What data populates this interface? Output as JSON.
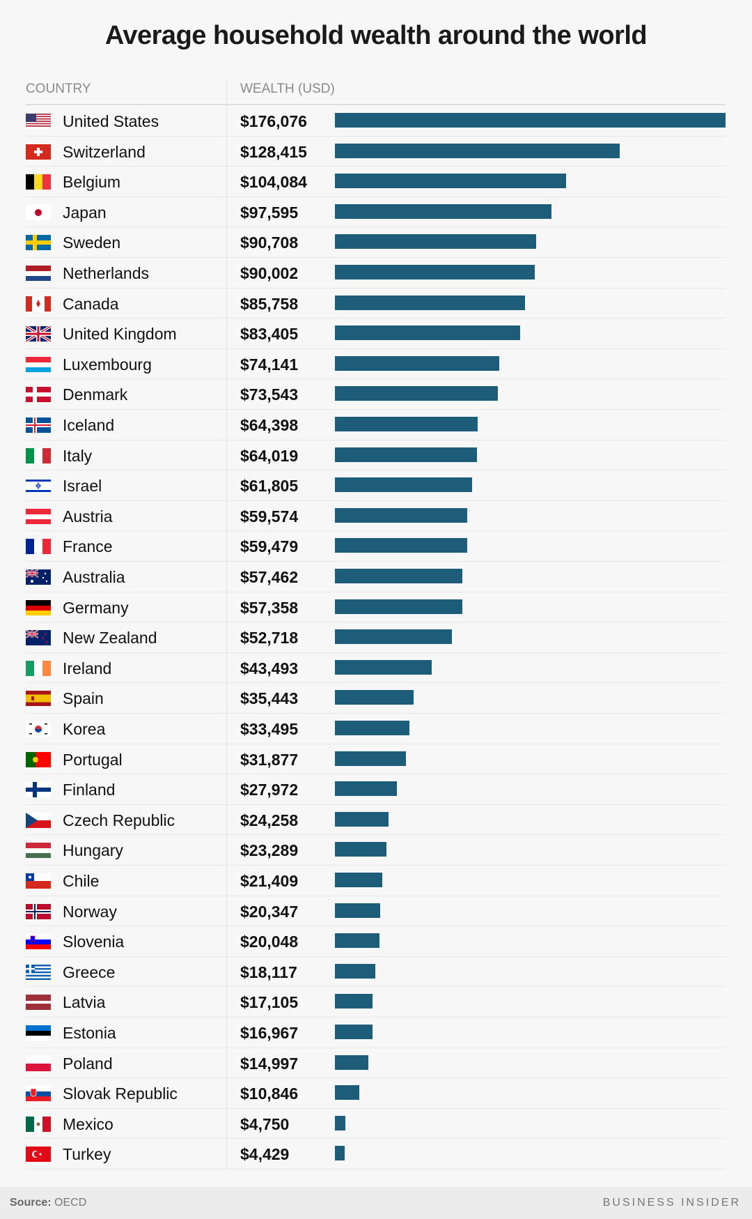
{
  "chart_data": {
    "type": "bar",
    "orientation": "horizontal",
    "title": "Average household wealth around the world",
    "column_headers": [
      "COUNTRY",
      "WEALTH (USD)"
    ],
    "xlim": [
      0,
      176076
    ],
    "grid": false,
    "bar_color": "#1d5d7a",
    "categories": [
      "United States",
      "Switzerland",
      "Belgium",
      "Japan",
      "Sweden",
      "Netherlands",
      "Canada",
      "United Kingdom",
      "Luxembourg",
      "Denmark",
      "Iceland",
      "Italy",
      "Israel",
      "Austria",
      "France",
      "Australia",
      "Germany",
      "New Zealand",
      "Ireland",
      "Spain",
      "Korea",
      "Portugal",
      "Finland",
      "Czech Republic",
      "Hungary",
      "Chile",
      "Norway",
      "Slovenia",
      "Greece",
      "Latvia",
      "Estonia",
      "Poland",
      "Slovak Republic",
      "Mexico",
      "Turkey"
    ],
    "values": [
      176076,
      128415,
      104084,
      97595,
      90708,
      90002,
      85758,
      83405,
      74141,
      73543,
      64398,
      64019,
      61805,
      59574,
      59479,
      57462,
      57358,
      52718,
      43493,
      35443,
      33495,
      31877,
      27972,
      24258,
      23289,
      21409,
      20347,
      20048,
      18117,
      17105,
      16967,
      14997,
      10846,
      4750,
      4429
    ],
    "labels": [
      "$176,076",
      "$128,415",
      "$104,084",
      "$97,595",
      "$90,708",
      "$90,002",
      "$85,758",
      "$83,405",
      "$74,141",
      "$73,543",
      "$64,398",
      "$64,019",
      "$61,805",
      "$59,574",
      "$59,479",
      "$57,462",
      "$57,358",
      "$52,718",
      "$43,493",
      "$35,443",
      "$33,495",
      "$31,877",
      "$27,972",
      "$24,258",
      "$23,289",
      "$21,409",
      "$20,347",
      "$20,048",
      "$18,117",
      "$17,105",
      "$16,967",
      "$14,997",
      "$10,846",
      "$4,750",
      "$4,429"
    ],
    "flag_icons": [
      "flag-us",
      "flag-ch",
      "flag-be",
      "flag-jp",
      "flag-se",
      "flag-nl",
      "flag-ca",
      "flag-gb",
      "flag-lu",
      "flag-dk",
      "flag-is",
      "flag-it",
      "flag-il",
      "flag-at",
      "flag-fr",
      "flag-au",
      "flag-de",
      "flag-nz",
      "flag-ie",
      "flag-es",
      "flag-kr",
      "flag-pt",
      "flag-fi",
      "flag-cz",
      "flag-hu",
      "flag-cl",
      "flag-no",
      "flag-si",
      "flag-gr",
      "flag-lv",
      "flag-ee",
      "flag-pl",
      "flag-sk",
      "flag-mx",
      "flag-tr"
    ]
  },
  "footer": {
    "source_label": "Source:",
    "source_value": "OECD",
    "brand": "BUSINESS INSIDER"
  }
}
